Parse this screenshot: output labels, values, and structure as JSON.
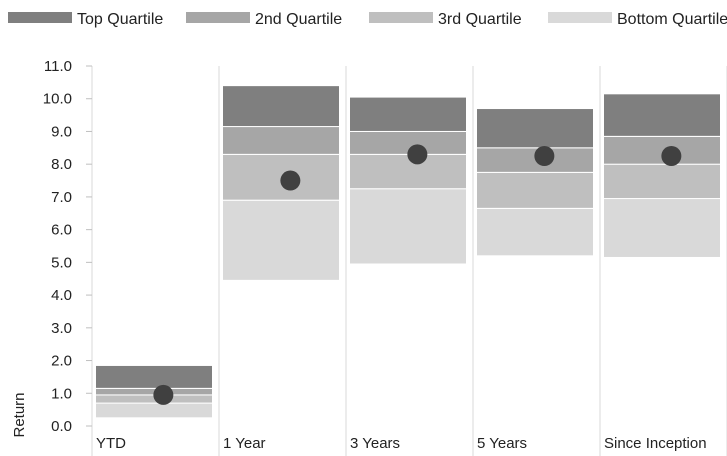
{
  "chart_data": {
    "type": "bar",
    "subtype": "stacked-range-with-marker",
    "title": "",
    "xlabel": "",
    "ylabel": "Return",
    "ylim": [
      0,
      11
    ],
    "yticks": [
      "0.0",
      "1.0",
      "2.0",
      "3.0",
      "4.0",
      "5.0",
      "6.0",
      "7.0",
      "8.0",
      "9.0",
      "10.0",
      "11.0"
    ],
    "categories": [
      "YTD",
      "1 Year",
      "3 Years",
      "5 Years",
      "Since Inception"
    ],
    "legend_position": "top",
    "grid": "vertical category separators",
    "series": [
      {
        "name": "Top Quartile",
        "color": "#7f7f7f",
        "low": [
          1.15,
          9.15,
          9.0,
          8.5,
          8.85
        ],
        "high": [
          1.85,
          10.4,
          10.05,
          9.7,
          10.15
        ]
      },
      {
        "name": "2nd Quartile",
        "color": "#a6a6a6",
        "low": [
          0.95,
          8.3,
          8.3,
          7.75,
          8.0
        ],
        "high": [
          1.15,
          9.15,
          9.0,
          8.5,
          8.85
        ]
      },
      {
        "name": "3rd Quartile",
        "color": "#bfbfbf",
        "low": [
          0.7,
          6.9,
          7.25,
          6.65,
          6.95
        ],
        "high": [
          0.95,
          8.3,
          8.3,
          7.75,
          8.0
        ]
      },
      {
        "name": "Bottom Quartile",
        "color": "#d9d9d9",
        "low": [
          0.25,
          4.45,
          4.95,
          5.2,
          5.15
        ],
        "high": [
          0.7,
          6.9,
          7.25,
          6.65,
          6.95
        ]
      }
    ],
    "marker": {
      "color": "#404040",
      "values": [
        0.95,
        7.5,
        8.3,
        8.25,
        8.25
      ]
    }
  }
}
